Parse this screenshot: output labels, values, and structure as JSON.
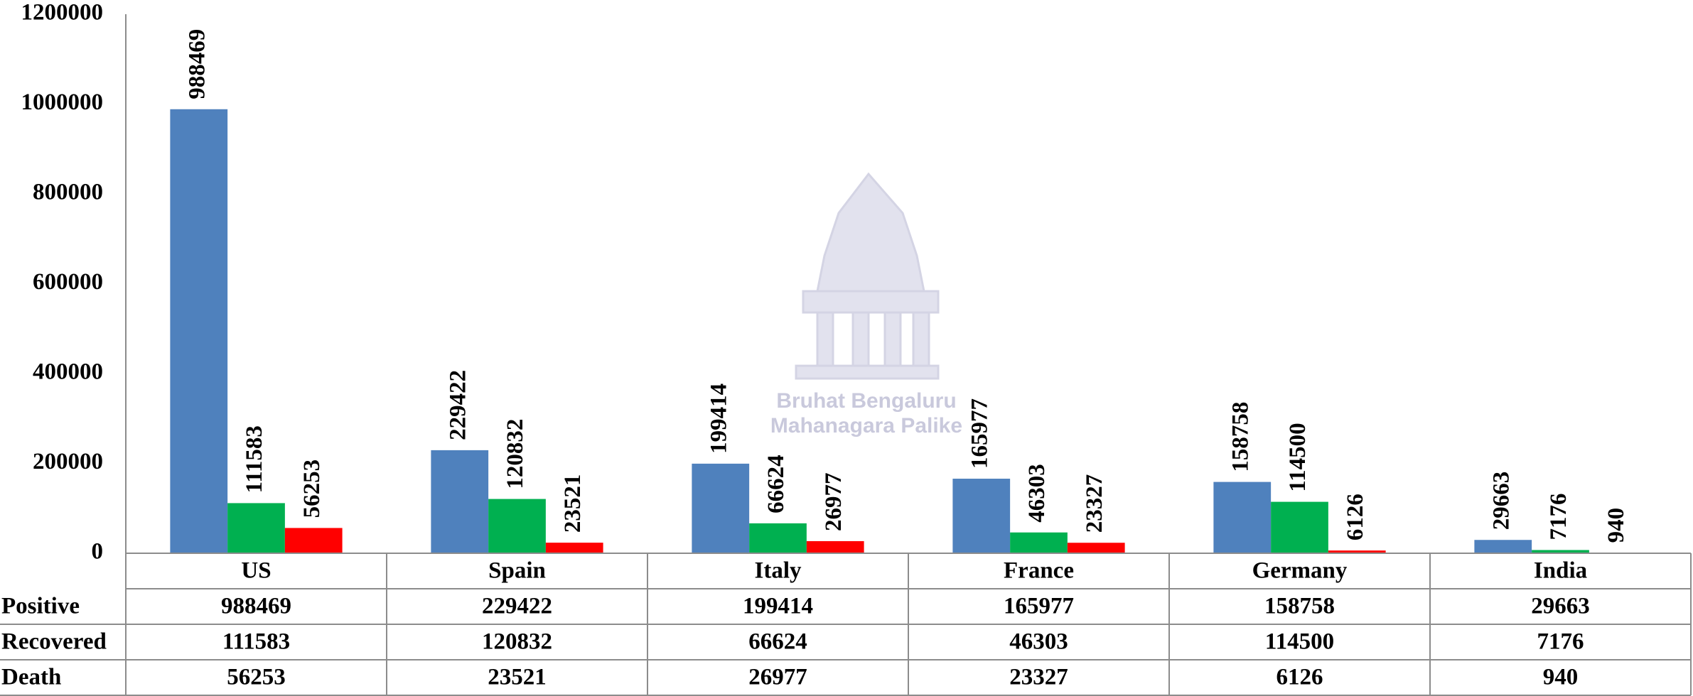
{
  "chart_data": {
    "type": "bar",
    "categories": [
      "US",
      "Spain",
      "Italy",
      "France",
      "Germany",
      "India"
    ],
    "series": [
      {
        "name": "Positive",
        "color": "#4f81bd",
        "values": [
          988469,
          229422,
          199414,
          165977,
          158758,
          29663
        ]
      },
      {
        "name": "Recovered",
        "color": "#00b050",
        "values": [
          111583,
          120832,
          66624,
          46303,
          114500,
          7176
        ]
      },
      {
        "name": "Death",
        "color": "#ff0000",
        "values": [
          56253,
          23521,
          26977,
          23327,
          6126,
          940
        ]
      }
    ],
    "ylim": [
      0,
      1200000
    ],
    "yticks": [
      0,
      200000,
      400000,
      600000,
      800000,
      1000000,
      1200000
    ],
    "grid": false,
    "data_table": true,
    "watermark": [
      "Bruhat Bengaluru",
      "Mahanagara Palike"
    ]
  }
}
